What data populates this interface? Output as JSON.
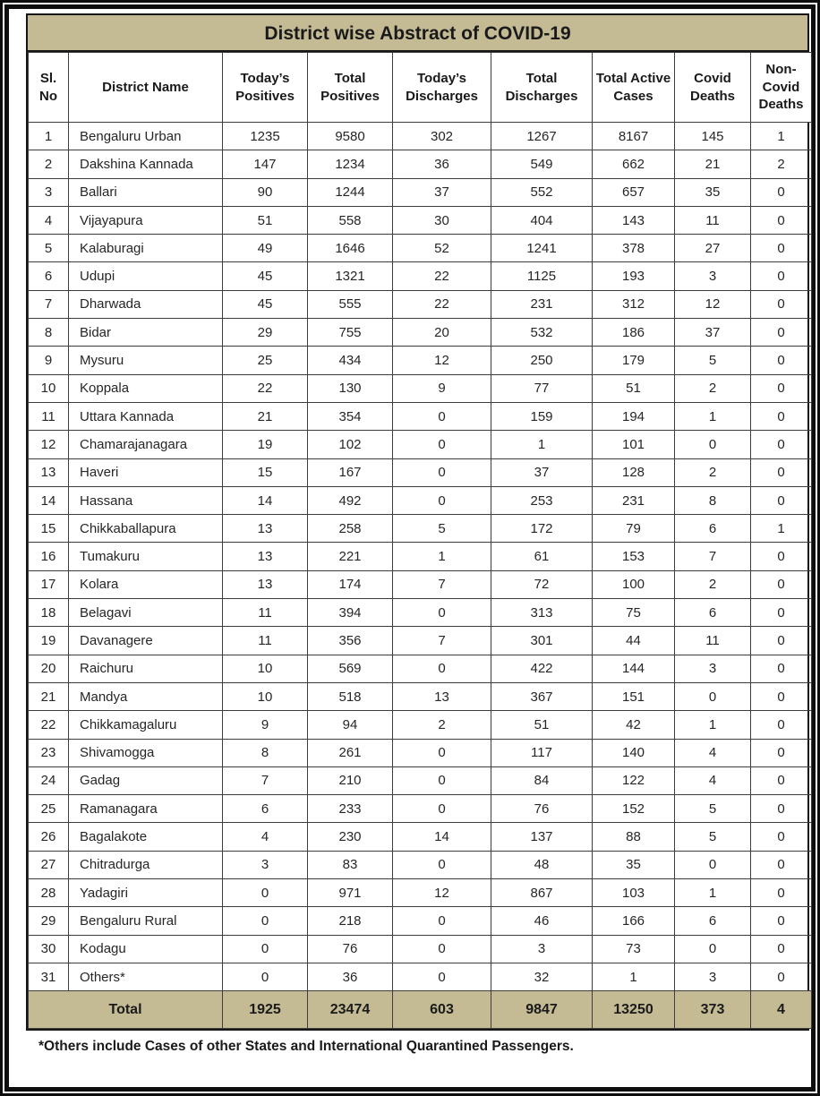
{
  "title": "District wise Abstract of COVID-19",
  "colors": {
    "band": "#c4bb95",
    "grid_line": "#3d3d3d",
    "frame": "#0d0d0d"
  },
  "columns": [
    "Sl. No",
    "District Name",
    "Today’s Positives",
    "Total Positives",
    "Today’s Discharges",
    "Total Discharges",
    "Total Active Cases",
    "Covid Deaths",
    "Non-Covid Deaths"
  ],
  "rows": [
    [
      1,
      "Bengaluru Urban",
      1235,
      9580,
      302,
      1267,
      8167,
      145,
      1
    ],
    [
      2,
      "Dakshina Kannada",
      147,
      1234,
      36,
      549,
      662,
      21,
      2
    ],
    [
      3,
      "Ballari",
      90,
      1244,
      37,
      552,
      657,
      35,
      0
    ],
    [
      4,
      "Vijayapura",
      51,
      558,
      30,
      404,
      143,
      11,
      0
    ],
    [
      5,
      "Kalaburagi",
      49,
      1646,
      52,
      1241,
      378,
      27,
      0
    ],
    [
      6,
      "Udupi",
      45,
      1321,
      22,
      1125,
      193,
      3,
      0
    ],
    [
      7,
      "Dharwada",
      45,
      555,
      22,
      231,
      312,
      12,
      0
    ],
    [
      8,
      "Bidar",
      29,
      755,
      20,
      532,
      186,
      37,
      0
    ],
    [
      9,
      "Mysuru",
      25,
      434,
      12,
      250,
      179,
      5,
      0
    ],
    [
      10,
      "Koppala",
      22,
      130,
      9,
      77,
      51,
      2,
      0
    ],
    [
      11,
      "Uttara Kannada",
      21,
      354,
      0,
      159,
      194,
      1,
      0
    ],
    [
      12,
      "Chamarajanagara",
      19,
      102,
      0,
      1,
      101,
      0,
      0
    ],
    [
      13,
      "Haveri",
      15,
      167,
      0,
      37,
      128,
      2,
      0
    ],
    [
      14,
      "Hassana",
      14,
      492,
      0,
      253,
      231,
      8,
      0
    ],
    [
      15,
      "Chikkaballapura",
      13,
      258,
      5,
      172,
      79,
      6,
      1
    ],
    [
      16,
      "Tumakuru",
      13,
      221,
      1,
      61,
      153,
      7,
      0
    ],
    [
      17,
      "Kolara",
      13,
      174,
      7,
      72,
      100,
      2,
      0
    ],
    [
      18,
      "Belagavi",
      11,
      394,
      0,
      313,
      75,
      6,
      0
    ],
    [
      19,
      "Davanagere",
      11,
      356,
      7,
      301,
      44,
      11,
      0
    ],
    [
      20,
      "Raichuru",
      10,
      569,
      0,
      422,
      144,
      3,
      0
    ],
    [
      21,
      "Mandya",
      10,
      518,
      13,
      367,
      151,
      0,
      0
    ],
    [
      22,
      "Chikkamagaluru",
      9,
      94,
      2,
      51,
      42,
      1,
      0
    ],
    [
      23,
      "Shivamogga",
      8,
      261,
      0,
      117,
      140,
      4,
      0
    ],
    [
      24,
      "Gadag",
      7,
      210,
      0,
      84,
      122,
      4,
      0
    ],
    [
      25,
      "Ramanagara",
      6,
      233,
      0,
      76,
      152,
      5,
      0
    ],
    [
      26,
      "Bagalakote",
      4,
      230,
      14,
      137,
      88,
      5,
      0
    ],
    [
      27,
      "Chitradurga",
      3,
      83,
      0,
      48,
      35,
      0,
      0
    ],
    [
      28,
      "Yadagiri",
      0,
      971,
      12,
      867,
      103,
      1,
      0
    ],
    [
      29,
      "Bengaluru Rural",
      0,
      218,
      0,
      46,
      166,
      6,
      0
    ],
    [
      30,
      "Kodagu",
      0,
      76,
      0,
      3,
      73,
      0,
      0
    ],
    [
      31,
      "Others*",
      0,
      36,
      0,
      32,
      1,
      3,
      0
    ]
  ],
  "total": {
    "label": "Total",
    "values": [
      1925,
      23474,
      603,
      9847,
      13250,
      373,
      4
    ]
  },
  "footnote": "*Others include Cases of other States and International Quarantined Passengers."
}
